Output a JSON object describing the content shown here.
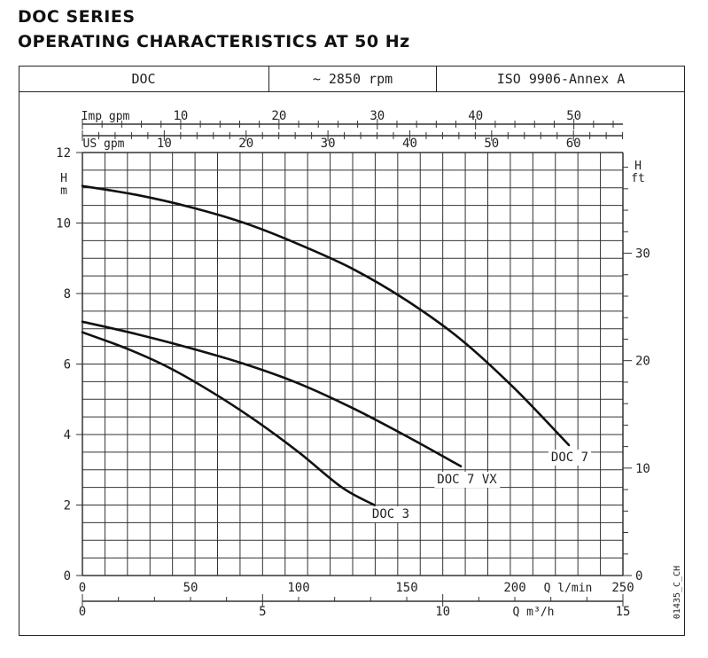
{
  "header": {
    "title_line1": "DOC SERIES",
    "title_line2": "OPERATING CHARACTERISTICS AT 50 Hz",
    "cells": [
      "DOC",
      "~ 2850 rpm",
      "ISO 9906-Annex A"
    ]
  },
  "chart_data": {
    "type": "line",
    "code": "01435_C_CH",
    "x_axis": {
      "label": "Q l/min",
      "range": [
        0,
        250
      ],
      "ticks": [
        0,
        50,
        100,
        150,
        200,
        250
      ]
    },
    "x_axis_m3h": {
      "label": "Q m³/h",
      "range": [
        0,
        15
      ],
      "ticks": [
        0,
        5,
        10,
        15
      ]
    },
    "x_axis_us_gpm": {
      "label": "US gpm",
      "ticks": [
        10,
        20,
        30,
        40,
        50,
        60
      ]
    },
    "x_axis_imp_gpm": {
      "label": "Imp gpm",
      "ticks": [
        10,
        20,
        30,
        40,
        50
      ]
    },
    "y_axis": {
      "label": "H m",
      "range": [
        0,
        12
      ],
      "ticks": [
        0,
        2,
        4,
        6,
        8,
        10,
        12
      ]
    },
    "y_axis_ft": {
      "label": "H ft",
      "ticks": [
        0,
        10,
        20,
        30
      ]
    },
    "grid": true,
    "series": [
      {
        "name": "DOC 3",
        "x": [
          0,
          20,
          40,
          60,
          80,
          100,
          120,
          135
        ],
        "y": [
          6.9,
          6.45,
          5.9,
          5.2,
          4.4,
          3.5,
          2.5,
          2.0
        ]
      },
      {
        "name": "DOC 7 VX",
        "x": [
          0,
          25,
          50,
          75,
          100,
          125,
          150,
          175
        ],
        "y": [
          7.2,
          6.85,
          6.45,
          6.0,
          5.45,
          4.75,
          3.95,
          3.1
        ]
      },
      {
        "name": "DOC 7",
        "x": [
          0,
          25,
          50,
          75,
          100,
          125,
          150,
          175,
          200,
          225
        ],
        "y": [
          11.05,
          10.8,
          10.45,
          10.0,
          9.4,
          8.7,
          7.8,
          6.7,
          5.3,
          3.7
        ]
      }
    ]
  }
}
